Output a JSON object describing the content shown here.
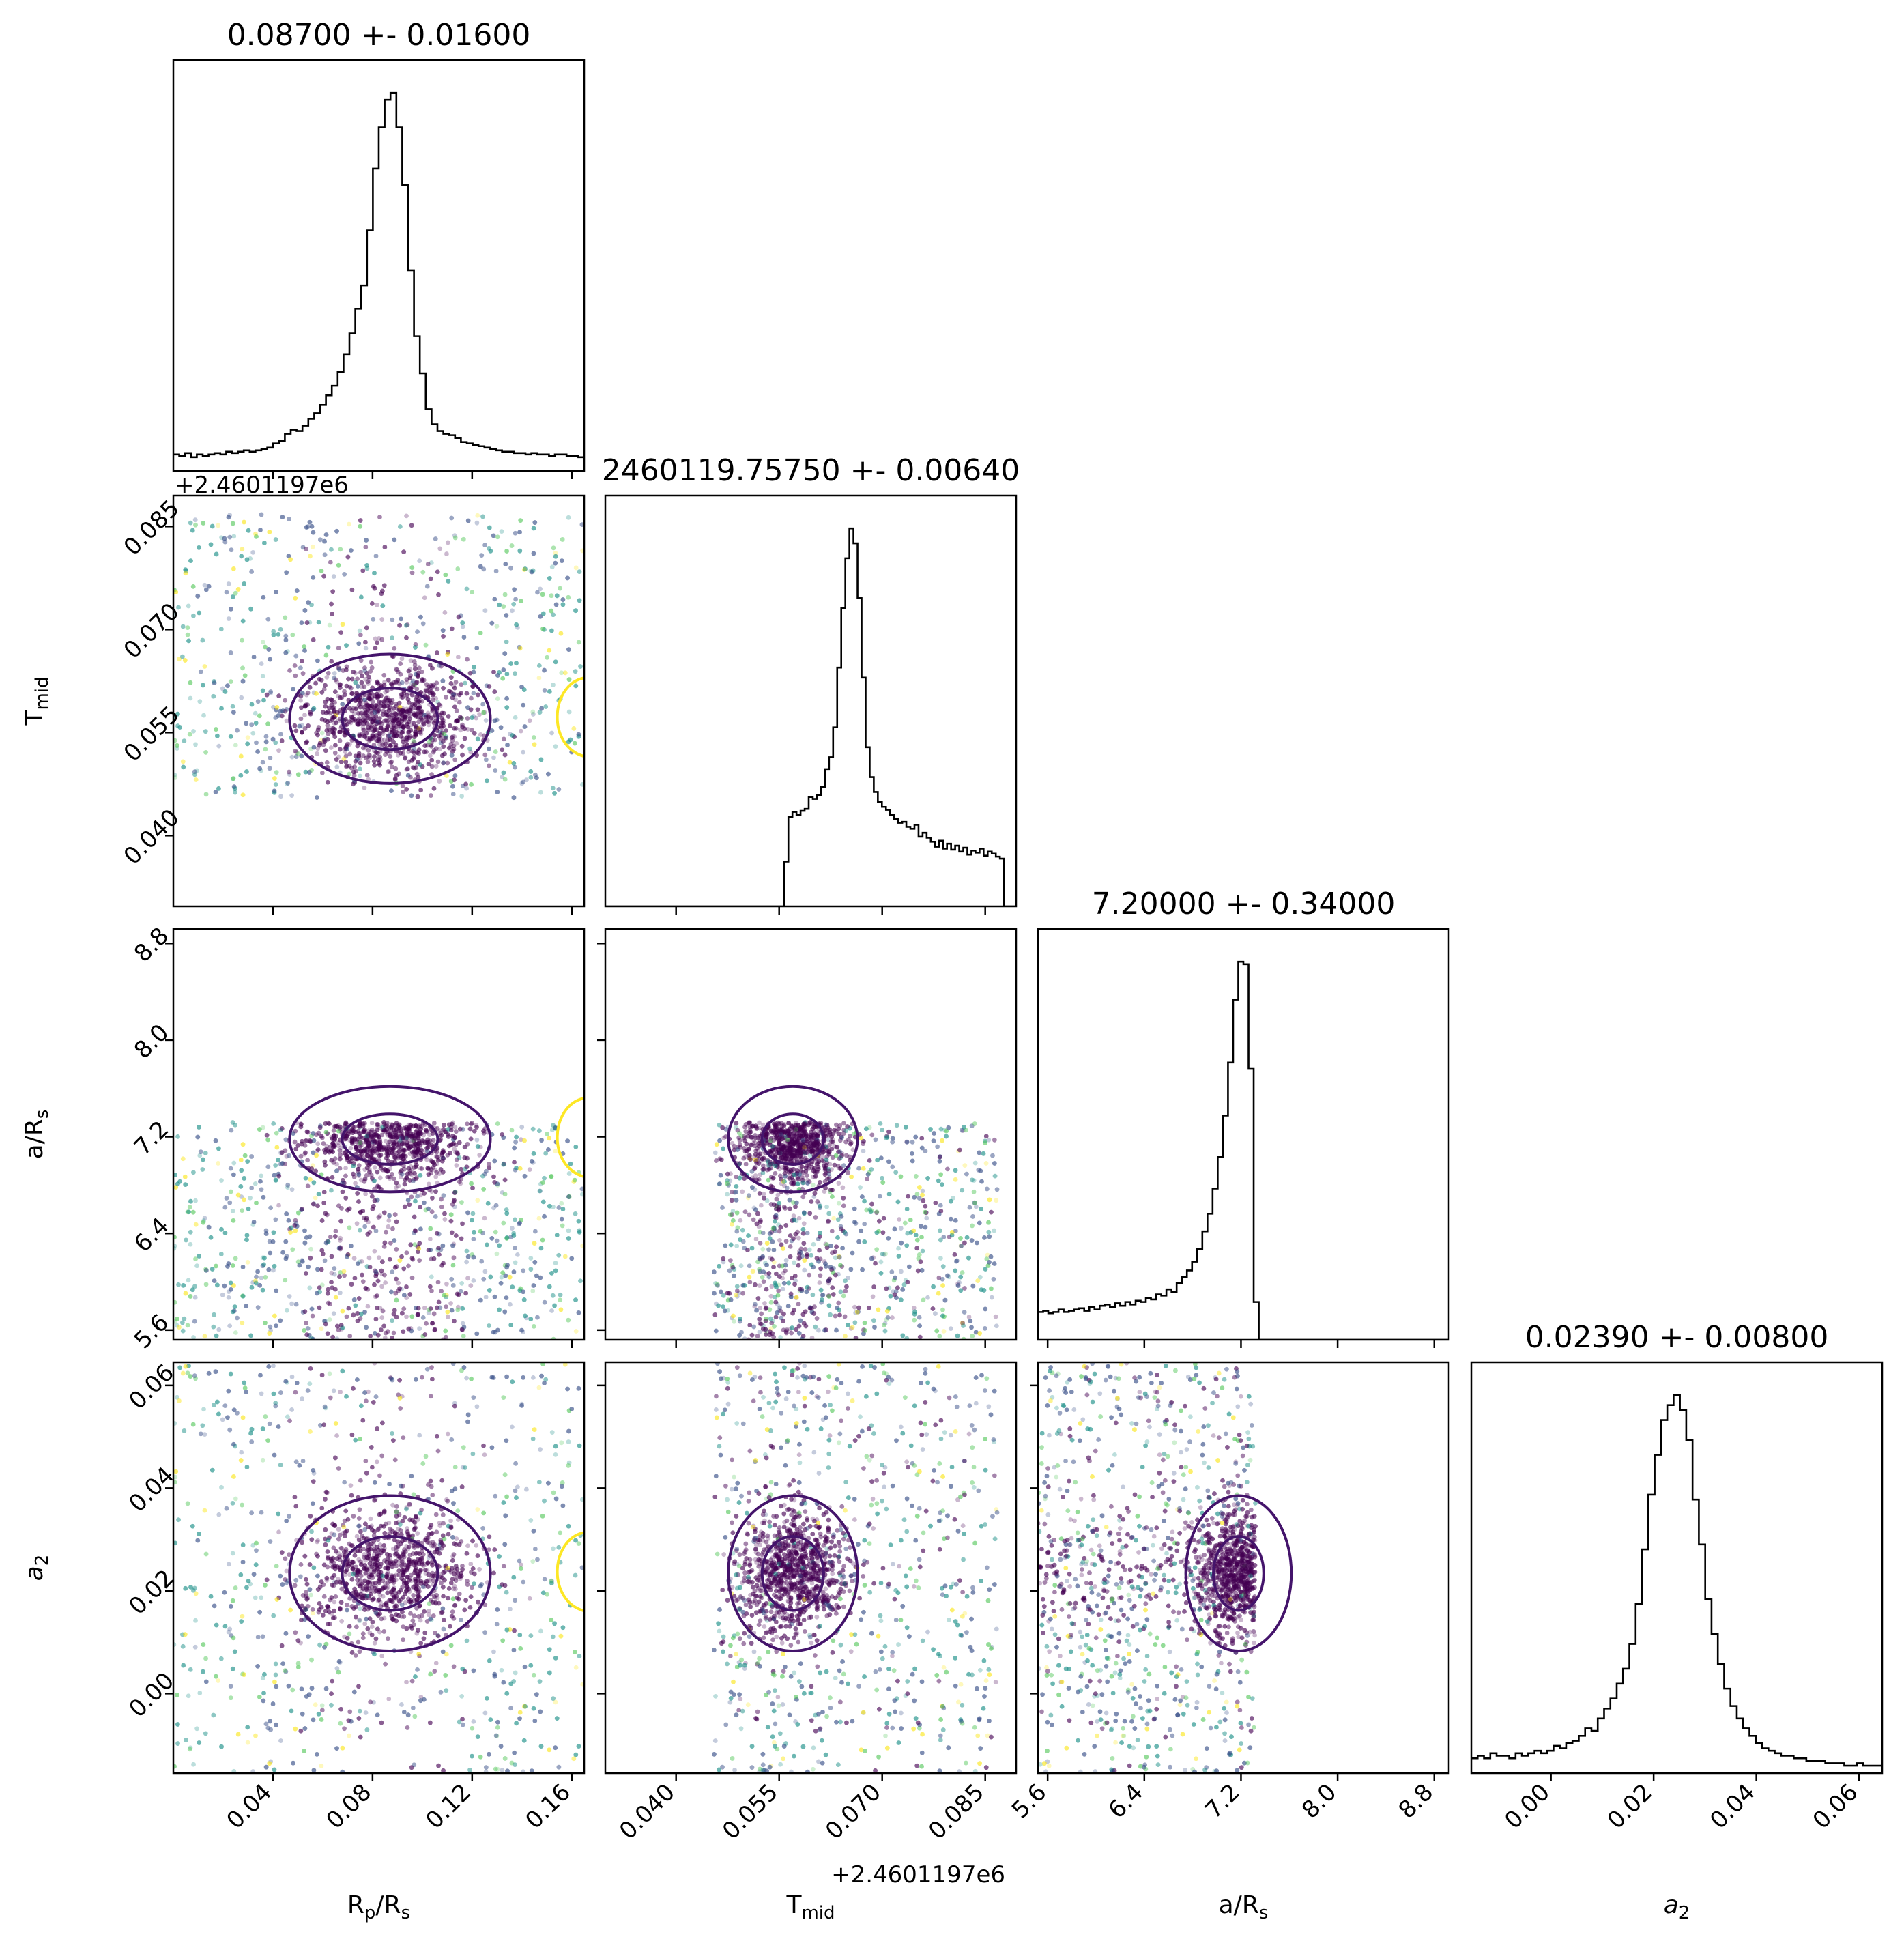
{
  "figure": {
    "type": "corner-plot",
    "parameters": [
      {
        "key": "rprs",
        "label_main": "R",
        "label_sub": "p",
        "label_main2": "/R",
        "label_sub2": "s"
      },
      {
        "key": "tmid",
        "label_main": "T",
        "label_sub": "mid"
      },
      {
        "key": "ars",
        "label_main": "a/R",
        "label_sub": "s"
      },
      {
        "key": "a2",
        "label_main": "a",
        "label_sub": "2",
        "italic": true
      }
    ],
    "titles": [
      "0.08700 +- 0.01600",
      "2460119.75750 +- 0.00640",
      "7.20000 +- 0.34000",
      "0.02390 +- 0.00800"
    ],
    "offset_texts": {
      "tmid_top": "+2.4601197e6",
      "tmid_bottom": "+2.4601197e6"
    },
    "point_colors": [
      "#440154",
      "#3b528b",
      "#21918c",
      "#5ec962",
      "#fde725"
    ],
    "contour_colors": {
      "main": "#44146b",
      "secondary": "#fde725"
    }
  },
  "chart_data": {
    "type": "scatter",
    "subtype": "corner",
    "ranges": {
      "rprs": [
        0.0,
        0.165
      ],
      "tmid": [
        0.0297,
        0.0895
      ],
      "ars": [
        5.52,
        8.92
      ],
      "a2": [
        -0.0155,
        0.0645
      ]
    },
    "ticks": {
      "rprs": {
        "values": [
          0.04,
          0.08,
          0.12,
          0.16
        ],
        "labels": [
          "0.04",
          "0.08",
          "0.12",
          "0.16"
        ]
      },
      "tmid": {
        "values": [
          0.04,
          0.055,
          0.07,
          0.085
        ],
        "labels": [
          "0.040",
          "0.055",
          "0.070",
          "0.085"
        ]
      },
      "ars": {
        "values": [
          5.6,
          6.4,
          7.2,
          8.0,
          8.8
        ],
        "labels": [
          "5.6",
          "6.4",
          "7.2",
          "8.0",
          "8.8"
        ]
      },
      "a2": {
        "values": [
          0.0,
          0.02,
          0.04,
          0.06
        ],
        "labels": [
          "0.00",
          "0.02",
          "0.04",
          "0.06"
        ]
      }
    },
    "sample_support": {
      "rprs": [
        0.0,
        0.165
      ],
      "tmid": [
        0.0455,
        0.0868
      ],
      "ars": [
        5.52,
        7.32
      ],
      "a2": [
        -0.0155,
        0.0645
      ]
    },
    "centers": {
      "rprs": 0.087,
      "tmid": 0.057,
      "ars": 7.18,
      "a2": 0.0234
    },
    "widths": {
      "rprs": 0.012,
      "tmid": 0.0028,
      "ars": 0.13,
      "a2": 0.0045
    },
    "histograms": {
      "rprs": {
        "bins": [
          0.0,
          0.165
        ],
        "counts": [
          12,
          11,
          13,
          10,
          12,
          11,
          12,
          13,
          12,
          14,
          13,
          14,
          15,
          14,
          15,
          16,
          17,
          20,
          22,
          27,
          30,
          29,
          33,
          38,
          42,
          48,
          55,
          62,
          72,
          85,
          100,
          118,
          135,
          175,
          220,
          250,
          270,
          275,
          250,
          208,
          146,
          98,
          71,
          45,
          34,
          29,
          27,
          26,
          24,
          21,
          20,
          19,
          18,
          17,
          16,
          15,
          14,
          14,
          13,
          13,
          12,
          13,
          12,
          12,
          11,
          12,
          12,
          11,
          11,
          10
        ]
      },
      "tmid": {
        "bins": [
          0.0297,
          0.0895
        ],
        "counts": [
          0,
          0,
          0,
          0,
          0,
          0,
          0,
          0,
          0,
          0,
          0,
          0,
          0,
          0,
          0,
          0,
          0,
          0,
          0,
          0,
          0,
          0,
          0,
          0,
          0,
          0,
          0,
          0,
          0,
          0,
          0,
          0,
          0,
          0,
          0,
          0,
          0,
          0,
          0,
          0,
          0,
          0,
          0,
          0,
          45,
          90,
          95,
          92,
          96,
          98,
          110,
          108,
          112,
          120,
          138,
          150,
          180,
          240,
          300,
          350,
          380,
          365,
          310,
          230,
          160,
          130,
          115,
          105,
          100,
          97,
          92,
          88,
          84,
          85,
          80,
          78,
          82,
          70,
          74,
          69,
          65,
          60,
          66,
          58,
          63,
          57,
          61,
          55,
          59,
          52,
          56,
          54,
          58,
          51,
          55,
          53,
          50,
          48,
          0,
          0,
          0
        ]
      },
      "ars": {
        "bins": [
          5.52,
          8.92
        ],
        "counts": [
          22,
          23,
          21,
          22,
          24,
          22,
          23,
          24,
          25,
          23,
          26,
          24,
          27,
          28,
          26,
          29,
          27,
          30,
          28,
          31,
          30,
          33,
          32,
          36,
          35,
          40,
          38,
          45,
          50,
          55,
          62,
          72,
          86,
          100,
          120,
          145,
          178,
          220,
          270,
          300,
          298,
          215,
          30,
          0,
          0,
          0,
          0,
          0,
          0,
          0,
          0,
          0,
          0,
          0,
          0,
          0,
          0,
          0,
          0,
          0,
          0,
          0,
          0,
          0,
          0,
          0,
          0,
          0,
          0,
          0,
          0,
          0,
          0,
          0,
          0,
          0,
          0,
          0,
          0,
          0
        ]
      },
      "a2": {
        "bins": [
          -0.0155,
          0.0645
        ],
        "counts": [
          6,
          7,
          6,
          8,
          7,
          7,
          6,
          8,
          7,
          8,
          9,
          8,
          9,
          11,
          10,
          12,
          13,
          15,
          18,
          17,
          22,
          26,
          30,
          36,
          42,
          52,
          68,
          90,
          112,
          128,
          142,
          148,
          152,
          146,
          134,
          110,
          92,
          70,
          56,
          44,
          34,
          27,
          22,
          18,
          15,
          12,
          10,
          9,
          8,
          7,
          7,
          6,
          6,
          5,
          5,
          5,
          4,
          4,
          4,
          3,
          3,
          4,
          3,
          3,
          3
        ]
      }
    }
  }
}
